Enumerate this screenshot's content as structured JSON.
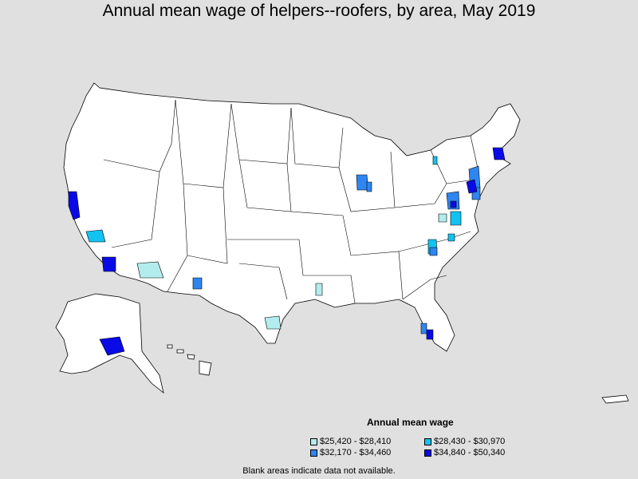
{
  "title": "Annual mean wage of helpers--roofers, by area, May 2019",
  "legend": {
    "title": "Annual mean wage",
    "items": [
      {
        "label": "$25,420 - $28,410",
        "color": "#b3ecec"
      },
      {
        "label": "$28,430 - $30,970",
        "color": "#11c3f0"
      },
      {
        "label": "$32,170 - $34,460",
        "color": "#2f86f0"
      },
      {
        "label": "$34,840 - $50,340",
        "color": "#0a0ae6"
      }
    ]
  },
  "note": "Blank areas indicate data not available."
}
